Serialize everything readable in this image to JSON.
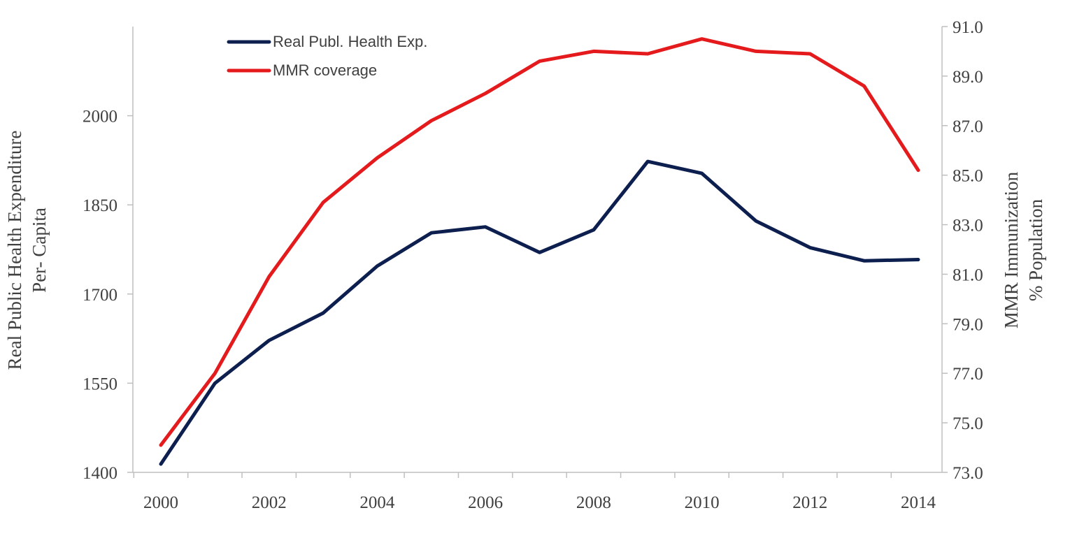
{
  "chart_data": {
    "type": "line",
    "title": "",
    "x": [
      2000,
      2001,
      2002,
      2003,
      2004,
      2005,
      2006,
      2007,
      2008,
      2009,
      2010,
      2011,
      2012,
      2013,
      2014
    ],
    "x_tick_labels": [
      "2000",
      "2002",
      "2004",
      "2006",
      "2008",
      "2010",
      "2012",
      "2014"
    ],
    "xlim": [
      2000,
      2014
    ],
    "left_axis": {
      "label_line1": "Real Public Health Expenditure",
      "label_line2": "Per- Capita",
      "ylim": [
        1400,
        2150
      ],
      "tick_labels": [
        "1400",
        "1550",
        "1700",
        "1850",
        "2000"
      ]
    },
    "right_axis": {
      "label_line1": "MMR Immunization",
      "label_line2": "% Population",
      "ylim": [
        73.0,
        91.0
      ],
      "tick_labels": [
        "73.0",
        "75.0",
        "77.0",
        "79.0",
        "81.0",
        "83.0",
        "85.0",
        "87.0",
        "89.0",
        "91.0"
      ]
    },
    "series": [
      {
        "name": "Real Publ. Health Exp.",
        "axis": "left",
        "color": "#0d1f4f",
        "values": [
          1414,
          1550,
          1622,
          1668,
          1747,
          1803,
          1813,
          1770,
          1808,
          1923,
          1903,
          1823,
          1778,
          1756,
          1758
        ]
      },
      {
        "name": "MMR coverage",
        "axis": "right",
        "color": "#e41a1c",
        "values": [
          74.1,
          77.0,
          80.9,
          83.9,
          85.7,
          87.2,
          88.3,
          89.6,
          90.0,
          89.9,
          90.5,
          90.0,
          89.9,
          88.6,
          85.2
        ]
      }
    ],
    "legend": [
      {
        "label": "Real Publ. Health Exp.",
        "color": "#0d1f4f"
      },
      {
        "label": "MMR coverage",
        "color": "#e41a1c"
      }
    ],
    "legend_position": "top-left",
    "grid": false
  }
}
